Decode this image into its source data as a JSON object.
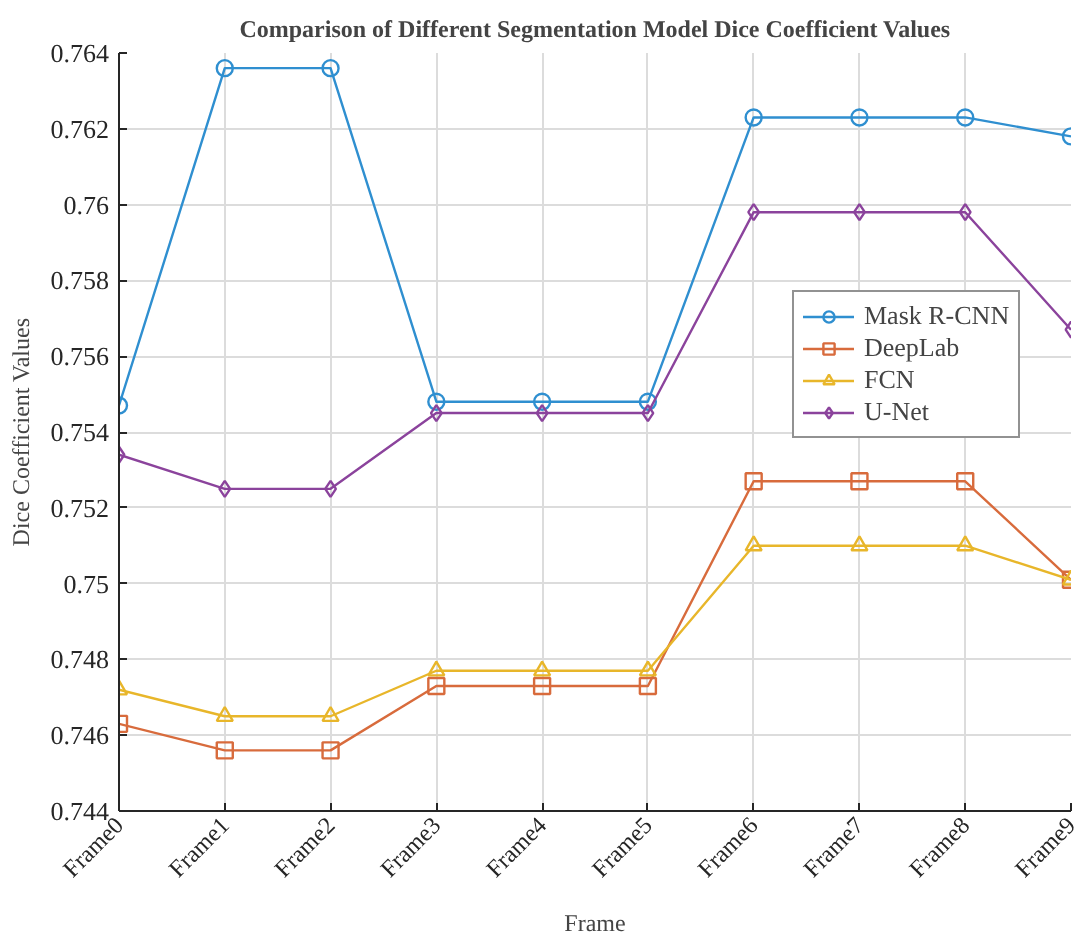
{
  "chart_data": {
    "type": "line",
    "title": "Comparison of Different Segmentation Model Dice Coefficient Values",
    "xlabel": "Frame",
    "ylabel": "Dice Coefficient Values",
    "categories": [
      "Frame0",
      "Frame1",
      "Frame2",
      "Frame3",
      "Frame4",
      "Frame5",
      "Frame6",
      "Frame7",
      "Frame8",
      "Frame9"
    ],
    "ylim": [
      0.744,
      0.764
    ],
    "yticks": [
      0.744,
      0.746,
      0.748,
      0.75,
      0.752,
      0.754,
      0.756,
      0.758,
      0.76,
      0.762,
      0.764
    ],
    "grid": true,
    "legend": "right",
    "series": [
      {
        "name": "Mask R-CNN",
        "color": "#2f8fd0",
        "marker": "circle",
        "values": [
          0.7547,
          0.7636,
          0.7636,
          0.7548,
          0.7548,
          0.7548,
          0.7623,
          0.7623,
          0.7623,
          0.7618
        ]
      },
      {
        "name": "DeepLab",
        "color": "#d86b3c",
        "marker": "square",
        "values": [
          0.7463,
          0.7456,
          0.7456,
          0.7473,
          0.7473,
          0.7473,
          0.7527,
          0.7527,
          0.7527,
          0.7501
        ]
      },
      {
        "name": "FCN",
        "color": "#e8b62a",
        "marker": "triangle",
        "values": [
          0.7472,
          0.7465,
          0.7465,
          0.7477,
          0.7477,
          0.7477,
          0.751,
          0.751,
          0.751,
          0.7501
        ]
      },
      {
        "name": "U-Net",
        "color": "#8b439c",
        "marker": "diamond",
        "values": [
          0.7534,
          0.7525,
          0.7525,
          0.7545,
          0.7545,
          0.7545,
          0.7598,
          0.7598,
          0.7598,
          0.7567
        ]
      }
    ]
  }
}
